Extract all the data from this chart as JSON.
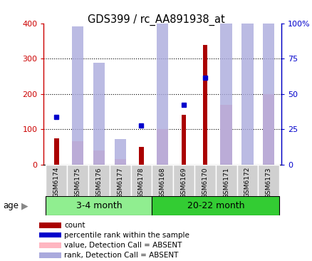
{
  "title": "GDS399 / rc_AA891938_at",
  "categories": [
    "GSM6174",
    "GSM6175",
    "GSM6176",
    "GSM6177",
    "GSM6178",
    "GSM6168",
    "GSM6169",
    "GSM6170",
    "GSM6171",
    "GSM6172",
    "GSM6173"
  ],
  "groups": [
    {
      "label": "3-4 month",
      "indices": [
        0,
        1,
        2,
        3,
        4
      ]
    },
    {
      "label": "20-22 month",
      "indices": [
        5,
        6,
        7,
        8,
        9,
        10
      ]
    }
  ],
  "count_values": [
    75,
    null,
    null,
    null,
    50,
    null,
    140,
    340,
    null,
    null,
    null
  ],
  "percentile_values": [
    135,
    null,
    null,
    null,
    110,
    null,
    170,
    247,
    null,
    null,
    null
  ],
  "absent_value_bars": [
    null,
    65,
    40,
    15,
    null,
    100,
    null,
    null,
    170,
    null,
    200
  ],
  "absent_rank_bars": [
    null,
    98,
    72,
    18,
    null,
    135,
    null,
    null,
    178,
    130,
    165
  ],
  "ylim_left": [
    0,
    400
  ],
  "ylim_right": [
    0,
    100
  ],
  "left_ticks": [
    0,
    100,
    200,
    300,
    400
  ],
  "right_ticks": [
    0,
    25,
    50,
    75,
    100
  ],
  "left_tick_labels": [
    "0",
    "100",
    "200",
    "300",
    "400"
  ],
  "right_tick_labels": [
    "0",
    "25",
    "50",
    "75",
    "100%"
  ],
  "left_color": "#CC0000",
  "right_color": "#0000CC",
  "count_color": "#AA0000",
  "percentile_color": "#0000CC",
  "absent_value_color": "#FFB6C1",
  "absent_rank_color": "#AAAADD",
  "background_plot": "#FFFFFF",
  "background_label": "#D0D0D0",
  "group_color_1": "#90EE90",
  "group_color_2": "#33CC33",
  "grid_color": "#000000",
  "dotted_lines": [
    100,
    200,
    300
  ],
  "scale": 4.0
}
